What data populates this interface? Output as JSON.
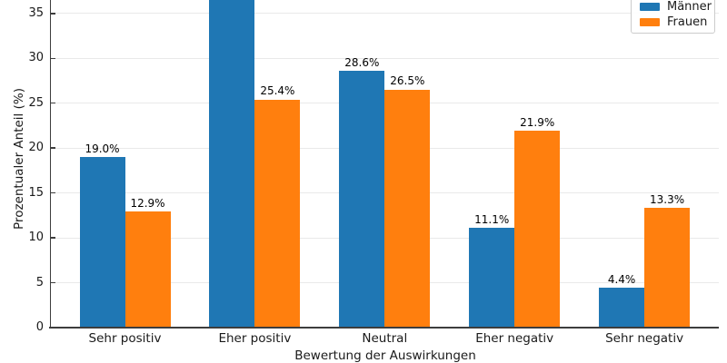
{
  "chart_data": {
    "type": "bar",
    "title": "",
    "xlabel": "Bewertung der Auswirkungen",
    "ylabel": "Prozentualer Anteil (%)",
    "categories": [
      "Sehr positiv",
      "Eher positiv",
      "Neutral",
      "Eher negativ",
      "Sehr negativ"
    ],
    "series": [
      {
        "name": "Männer",
        "color": "#1f77b4",
        "values": [
          19.0,
          36.9,
          28.6,
          11.1,
          4.4
        ]
      },
      {
        "name": "Frauen",
        "color": "#ff7f0e",
        "values": [
          12.9,
          25.4,
          26.5,
          21.9,
          13.3
        ]
      }
    ],
    "value_label_suffix": "%",
    "yticks": [
      0,
      5,
      10,
      15,
      20,
      25,
      30,
      35
    ],
    "ylim": [
      0,
      36.5
    ],
    "grid": true,
    "legend_position": "top-right",
    "notes": "top of chart cropped: tallest bar (Männer, Eher positiv) and its value label extend past the top edge"
  }
}
